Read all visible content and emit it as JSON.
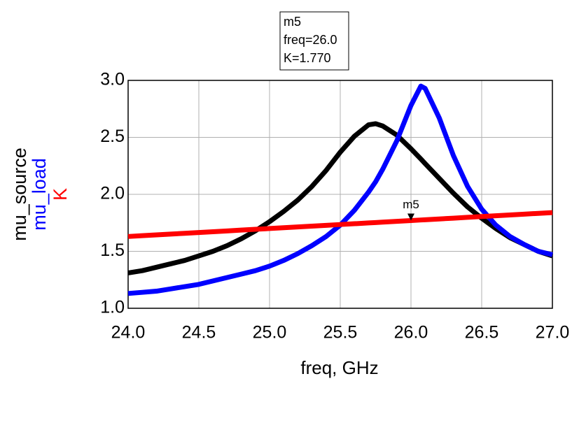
{
  "chart_data": {
    "type": "line",
    "xlabel": "freq, GHz",
    "x": [
      24.0,
      24.1,
      24.2,
      24.3,
      24.4,
      24.5,
      24.6,
      24.7,
      24.8,
      24.9,
      25.0,
      25.1,
      25.2,
      25.3,
      25.4,
      25.5,
      25.6,
      25.7,
      25.75,
      25.8,
      25.9,
      26.0,
      26.07,
      26.1,
      26.2,
      26.3,
      26.4,
      26.5,
      26.6,
      26.7,
      26.8,
      26.9,
      27.0
    ],
    "series": [
      {
        "name": "mu_source",
        "color": "#000000",
        "values": [
          1.31,
          1.33,
          1.36,
          1.39,
          1.42,
          1.46,
          1.5,
          1.55,
          1.61,
          1.68,
          1.76,
          1.85,
          1.95,
          2.07,
          2.21,
          2.37,
          2.51,
          2.61,
          2.62,
          2.6,
          2.52,
          2.4,
          2.31,
          2.27,
          2.14,
          2.01,
          1.89,
          1.79,
          1.7,
          1.62,
          1.56,
          1.5,
          1.46
        ]
      },
      {
        "name": "mu_load",
        "color": "#0000ff",
        "values": [
          1.13,
          1.14,
          1.15,
          1.17,
          1.19,
          1.21,
          1.24,
          1.27,
          1.3,
          1.33,
          1.37,
          1.42,
          1.48,
          1.55,
          1.63,
          1.73,
          1.86,
          2.02,
          2.11,
          2.22,
          2.47,
          2.78,
          2.95,
          2.93,
          2.67,
          2.34,
          2.07,
          1.87,
          1.73,
          1.63,
          1.56,
          1.5,
          1.47
        ]
      },
      {
        "name": "K",
        "color": "#ff0000",
        "values": [
          1.63,
          1.637,
          1.644,
          1.651,
          1.658,
          1.665,
          1.672,
          1.679,
          1.686,
          1.693,
          1.7,
          1.707,
          1.714,
          1.721,
          1.728,
          1.735,
          1.742,
          1.749,
          1.7525,
          1.756,
          1.763,
          1.77,
          1.7749,
          1.777,
          1.784,
          1.791,
          1.798,
          1.805,
          1.812,
          1.819,
          1.826,
          1.833,
          1.84
        ]
      }
    ],
    "xlim": [
      24.0,
      27.0
    ],
    "ylim": [
      1.0,
      3.0
    ],
    "xticks": [
      {
        "value": 24,
        "label": "24.0"
      },
      {
        "value": 24.5,
        "label": "24.5"
      },
      {
        "value": 25,
        "label": "25.0"
      },
      {
        "value": 25.5,
        "label": "25.5"
      },
      {
        "value": 26,
        "label": "26.0"
      },
      {
        "value": 26.5,
        "label": "26.5"
      },
      {
        "value": 27,
        "label": "27.0"
      }
    ],
    "yticks": [
      {
        "value": 1,
        "label": "1.0"
      },
      {
        "value": 1.5,
        "label": "1.5"
      },
      {
        "value": 2,
        "label": "2.0"
      },
      {
        "value": 2.5,
        "label": "2.5"
      },
      {
        "value": 3,
        "label": "3.0"
      }
    ],
    "grid": true,
    "marker": {
      "name": "m5",
      "x": 26.0,
      "y": 1.77,
      "readout": [
        "freq=26.0",
        "K=1.770"
      ]
    }
  }
}
